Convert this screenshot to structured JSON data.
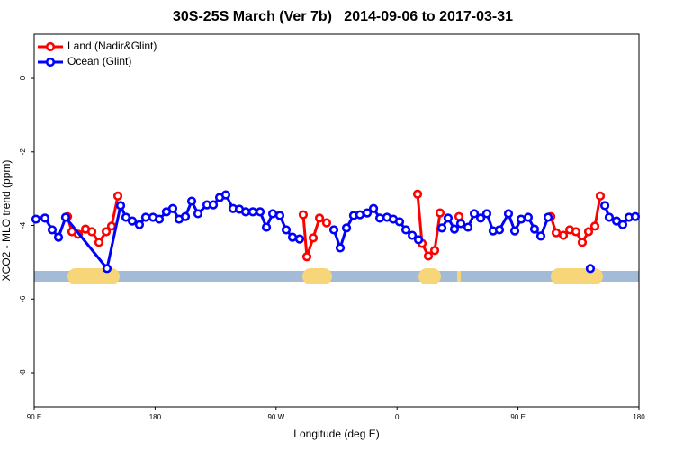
{
  "chart_data": {
    "type": "line",
    "title": "30S-25S March (Ver 7b)   2014-09-06 to 2017-03-31",
    "x_label": "Longitude (deg E)",
    "y_label": "XCO2 - MLO trend (ppm)",
    "xlim": [
      90,
      540
    ],
    "xticks": [
      {
        "value": 90,
        "label": "90 E"
      },
      {
        "value": 180,
        "label": "180"
      },
      {
        "value": 270,
        "label": "90 W"
      },
      {
        "value": 360,
        "label": "0"
      },
      {
        "value": 450,
        "label": "90 E"
      },
      {
        "value": 540,
        "label": "180"
      }
    ],
    "ylim": [
      -8.93,
      1.2
    ],
    "yticks": [
      0,
      -2,
      -4,
      -6,
      -8
    ],
    "legend": "top-left",
    "series": [
      {
        "name": "Land (Nadir&Glint)",
        "color": "#ff0000",
        "x": [
          114.8,
          118.1,
          122.8,
          128.2,
          132.9,
          138.2,
          143.6,
          147.6,
          152.3,
          250,
          290.2,
          292.9,
          297.6,
          302.3,
          307.6,
          340,
          375.3,
          378.6,
          383.3,
          388,
          392,
          400,
          406.1,
          440,
          474.4,
          478.4,
          483.8,
          488.5,
          493.1,
          497.8,
          502.5,
          507.2,
          511.2
        ],
        "values": [
          -3.76,
          -4.17,
          -4.24,
          -4.1,
          -4.17,
          -4.46,
          -4.17,
          -4.02,
          -3.2,
          null,
          -3.71,
          -4.85,
          -4.34,
          -3.8,
          -3.93,
          null,
          -3.15,
          -4.49,
          -4.83,
          -4.68,
          -3.66,
          null,
          -3.76,
          null,
          -3.76,
          -4.2,
          -4.27,
          -4.12,
          -4.17,
          -4.46,
          -4.17,
          -4.02,
          -3.2
        ]
      },
      {
        "name": "Ocean (Glint)",
        "color": "#0000ff",
        "x": [
          91.3,
          98,
          103.4,
          108.1,
          113.4,
          144.2,
          154.3,
          158.3,
          163,
          168.3,
          173,
          178.4,
          183.1,
          188.4,
          193.1,
          197.8,
          202.5,
          207.2,
          211.9,
          218.6,
          223.3,
          228,
          232.6,
          238,
          242.7,
          247.4,
          252.7,
          258.1,
          262.8,
          267.5,
          272.8,
          277.5,
          282.2,
          287.5,
          300,
          313,
          317.7,
          322.4,
          327.7,
          332.4,
          337.8,
          342.5,
          347.2,
          352.5,
          357.2,
          361.9,
          366.6,
          371.3,
          376,
          385,
          393.4,
          398,
          402.7,
          407.4,
          412.8,
          417.5,
          422.2,
          426.8,
          431.5,
          436.2,
          442.9,
          447.6,
          452.3,
          457.6,
          462.3,
          467,
          472.4,
          490,
          503.8,
          510,
          514.6,
          517.9,
          523.3,
          527.9,
          532.6,
          537.3
        ],
        "values": [
          -3.83,
          -3.8,
          -4.12,
          -4.32,
          -3.78,
          -5.17,
          -3.46,
          -3.78,
          -3.88,
          -3.98,
          -3.78,
          -3.78,
          -3.83,
          -3.63,
          -3.54,
          -3.83,
          -3.76,
          -3.34,
          -3.68,
          -3.44,
          -3.44,
          -3.24,
          -3.17,
          -3.54,
          -3.56,
          -3.63,
          -3.63,
          -3.63,
          -4.05,
          -3.68,
          -3.73,
          -4.12,
          -4.32,
          -4.37,
          null,
          -4.12,
          -4.61,
          -4.07,
          -3.73,
          -3.71,
          -3.66,
          -3.54,
          -3.8,
          -3.78,
          -3.83,
          -3.9,
          -4.12,
          -4.27,
          -4.39,
          null,
          -4.07,
          -3.8,
          -4.1,
          -3.95,
          -4.05,
          -3.68,
          -3.8,
          -3.68,
          -4.15,
          -4.12,
          -3.68,
          -4.15,
          -3.83,
          -3.78,
          -4.1,
          -4.29,
          -3.78,
          null,
          -5.17,
          null,
          -3.46,
          -3.78,
          -3.88,
          -3.98,
          -3.78,
          -3.76
        ]
      }
    ]
  }
}
